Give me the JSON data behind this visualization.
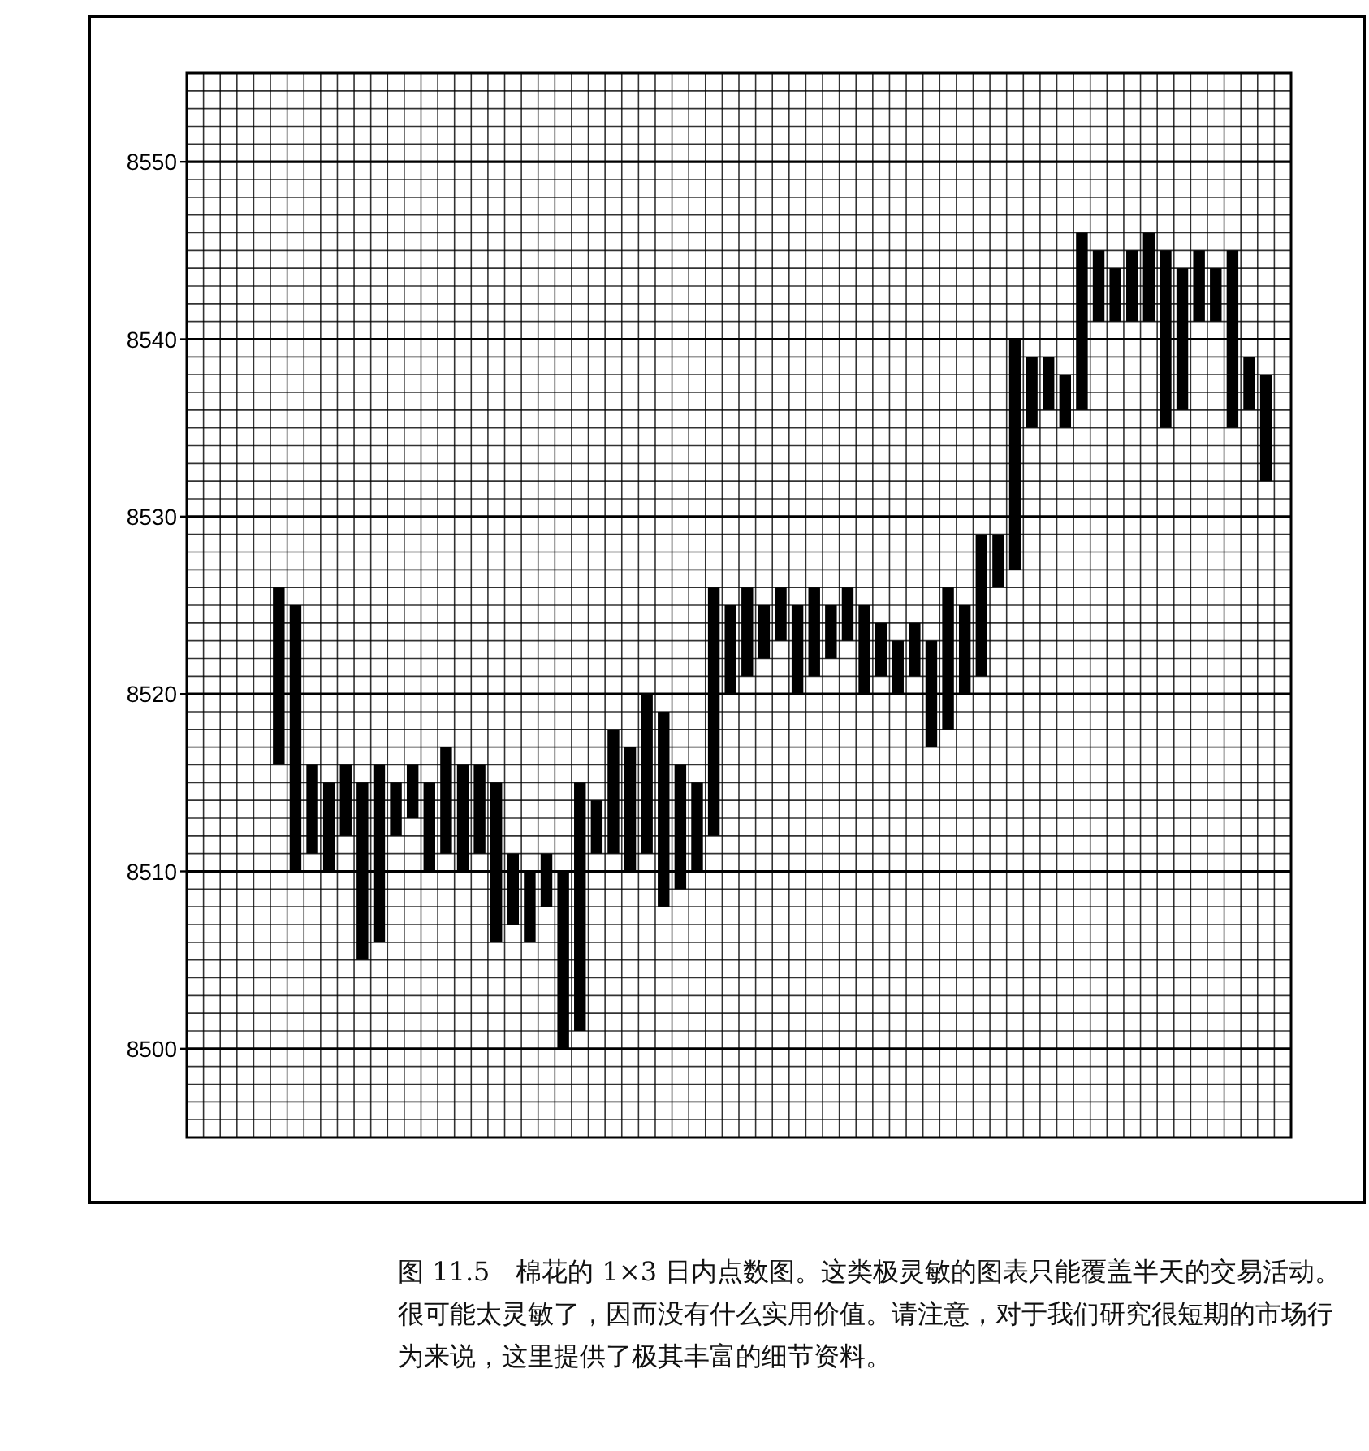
{
  "chart_data": {
    "type": "bar",
    "categories": [
      null,
      null,
      null,
      null,
      null,
      null,
      null,
      null,
      null,
      null,
      null,
      null,
      null,
      null,
      null,
      null,
      null,
      null,
      null,
      null,
      null,
      null,
      null,
      null,
      null,
      null,
      null,
      null,
      null,
      null,
      null,
      null,
      null,
      null,
      null,
      null,
      null,
      null,
      null,
      null,
      null,
      null,
      null,
      null,
      null,
      null,
      null,
      null,
      null,
      null,
      null,
      null,
      null,
      null,
      null,
      null,
      null,
      null,
      null,
      null,
      null,
      null,
      null,
      null,
      null,
      null
    ],
    "base": [
      null,
      null,
      null,
      null,
      null,
      8516,
      8510,
      8511,
      8510,
      8512,
      8505,
      8506,
      8512,
      8513,
      8510,
      8511,
      8510,
      8511,
      8506,
      8507,
      8506,
      8508,
      8500,
      8501,
      8511,
      8511,
      8510,
      8511,
      8508,
      8509,
      8510,
      8512,
      8520,
      8521,
      8522,
      8523,
      8520,
      8521,
      8522,
      8523,
      8520,
      8521,
      8520,
      8521,
      8517,
      8518,
      8520,
      8521,
      8526,
      8527,
      8535,
      8536,
      8535,
      8536,
      8541,
      8541,
      8541,
      8541,
      8535,
      8536,
      8541,
      8541,
      8535,
      8536,
      8532,
      null
    ],
    "values": [
      null,
      null,
      null,
      null,
      null,
      10,
      15,
      5,
      5,
      4,
      10,
      10,
      3,
      3,
      5,
      6,
      6,
      5,
      9,
      4,
      4,
      3,
      10,
      14,
      3,
      7,
      7,
      9,
      11,
      7,
      5,
      14,
      5,
      5,
      3,
      3,
      5,
      5,
      3,
      3,
      5,
      3,
      3,
      3,
      6,
      8,
      5,
      8,
      3,
      13,
      4,
      3,
      3,
      10,
      4,
      3,
      4,
      5,
      10,
      8,
      4,
      3,
      10,
      3,
      6,
      null
    ],
    "color": "#000000",
    "ylim": [
      8495,
      8555
    ],
    "yticks": [
      8500,
      8510,
      8520,
      8530,
      8540,
      8550
    ],
    "grid": true,
    "annotations": [
      "图 11.5　棉花的 1×3 日内点数图。这类极灵敏的图表只能覆盖半天的交易活动。很可能太灵敏了，因而没有什么实用价值。请注意，对于我们研究很短期的市场行为来说，这里提供了极其丰富的细节资料。"
    ]
  }
}
